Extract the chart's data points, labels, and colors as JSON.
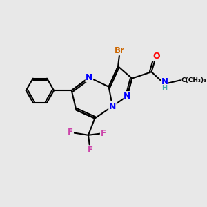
{
  "background_color": "#e8e8e8",
  "bond_color": "#000000",
  "atom_colors": {
    "Br": "#cc6600",
    "N": "#0000ff",
    "O": "#ff0000",
    "F": "#cc44aa",
    "H": "#44aaaa",
    "C": "#000000"
  },
  "figsize": [
    3.0,
    3.0
  ],
  "dpi": 100
}
